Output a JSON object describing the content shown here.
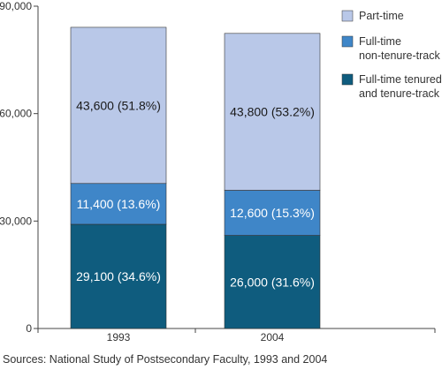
{
  "chart_data": {
    "type": "bar",
    "stacked": true,
    "categories": [
      "1993",
      "2004"
    ],
    "series": [
      {
        "name": "Full-time tenured and tenure-track",
        "legend_lines": [
          "Full-time tenured",
          "and tenure-track"
        ],
        "values": [
          29100,
          26000
        ],
        "labels": [
          "29,100  (34.6%)",
          "26,000  (31.6%)"
        ],
        "color": "#0f5c7e"
      },
      {
        "name": "Full-time non-tenure-track",
        "legend_lines": [
          "Full-time",
          "non-tenure-track"
        ],
        "values": [
          11400,
          12600
        ],
        "labels": [
          "11,400  (13.6%)",
          "12,600  (15.3%)"
        ],
        "color": "#3f86c8"
      },
      {
        "name": "Part-time",
        "legend_lines": [
          "Part-time"
        ],
        "values": [
          43600,
          43800
        ],
        "labels": [
          "43,600  (51.8%)",
          "43,800  (53.2%)"
        ],
        "color": "#b9c8e8"
      }
    ],
    "ylim": [
      0,
      90000
    ],
    "yticks": [
      0,
      30000,
      60000,
      90000
    ],
    "ytick_labels": [
      "0",
      "30,000",
      "60,000",
      "90,000"
    ],
    "grid": false,
    "legend_position": "top-right",
    "title": "",
    "xlabel": "",
    "ylabel": ""
  },
  "source_note": "Sources: National Study of Postsecondary Faculty, 1993 and 2004"
}
